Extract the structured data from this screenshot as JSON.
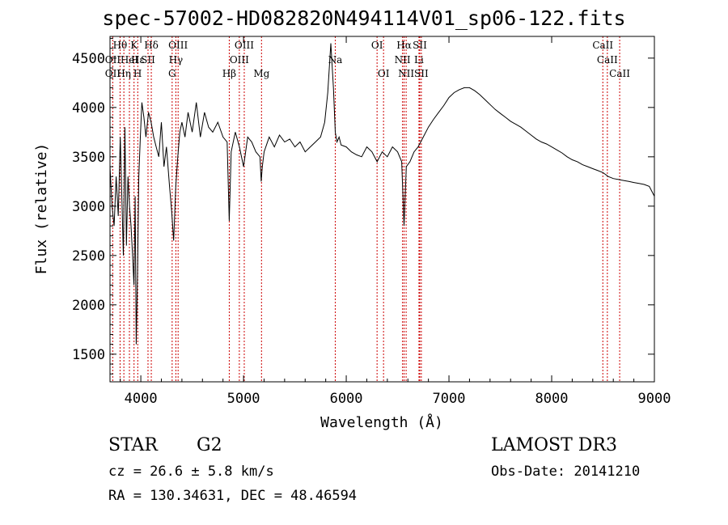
{
  "header": {
    "title": "spec-57002-HD082820N494114V01_sp06-122.fits"
  },
  "footer": {
    "object_type": "STAR",
    "subclass": "G2",
    "survey": "LAMOST DR3",
    "cz": "cz = 26.6 ± 5.8 km/s",
    "obs_date": "Obs-Date: 20141210",
    "radec": "RA = 130.34631, DEC =  48.46594"
  },
  "chart_data": {
    "type": "line",
    "xlabel": "Wavelength (Å)",
    "ylabel": "Flux (relative)",
    "xlim": [
      3700,
      9000
    ],
    "ylim": [
      1220,
      4720
    ],
    "xticks": [
      4000,
      5000,
      6000,
      7000,
      8000,
      9000
    ],
    "yticks": [
      1500,
      2000,
      2500,
      3000,
      3500,
      4000,
      4500
    ],
    "series": [
      {
        "color": "#000000",
        "x": [
          3700,
          3720,
          3740,
          3760,
          3780,
          3800,
          3815,
          3830,
          3845,
          3860,
          3875,
          3890,
          3905,
          3920,
          3933,
          3945,
          3955,
          3968,
          3980,
          3995,
          4010,
          4030,
          4050,
          4075,
          4100,
          4125,
          4150,
          4175,
          4200,
          4225,
          4250,
          4280,
          4300,
          4320,
          4340,
          4360,
          4380,
          4400,
          4430,
          4460,
          4500,
          4540,
          4580,
          4620,
          4660,
          4700,
          4750,
          4800,
          4840,
          4861,
          4880,
          4920,
          4960,
          5000,
          5040,
          5080,
          5120,
          5160,
          5172,
          5183,
          5200,
          5250,
          5300,
          5350,
          5400,
          5450,
          5500,
          5550,
          5600,
          5650,
          5700,
          5750,
          5790,
          5820,
          5850,
          5875,
          5893,
          5910,
          5930,
          5950,
          6000,
          6050,
          6100,
          6150,
          6200,
          6250,
          6300,
          6350,
          6400,
          6450,
          6500,
          6540,
          6563,
          6585,
          6620,
          6660,
          6700,
          6750,
          6800,
          6850,
          6900,
          6950,
          7000,
          7050,
          7100,
          7150,
          7200,
          7250,
          7300,
          7350,
          7400,
          7450,
          7500,
          7550,
          7600,
          7650,
          7700,
          7750,
          7800,
          7850,
          7900,
          7950,
          8000,
          8050,
          8100,
          8150,
          8200,
          8250,
          8300,
          8350,
          8400,
          8450,
          8500,
          8550,
          8600,
          8650,
          8700,
          8750,
          8800,
          8850,
          8900,
          8950,
          9000
        ],
        "y": [
          3400,
          3000,
          2800,
          3300,
          2900,
          3700,
          3100,
          2500,
          3800,
          2600,
          3300,
          3000,
          2800,
          2500,
          2200,
          3100,
          1600,
          2300,
          3300,
          3700,
          4050,
          3900,
          3700,
          3950,
          3850,
          3700,
          3600,
          3500,
          3850,
          3400,
          3600,
          3200,
          2950,
          2650,
          3200,
          3500,
          3750,
          3850,
          3700,
          3950,
          3750,
          4050,
          3700,
          3950,
          3800,
          3750,
          3850,
          3700,
          3650,
          2850,
          3550,
          3750,
          3600,
          3400,
          3700,
          3650,
          3550,
          3500,
          3250,
          3400,
          3550,
          3700,
          3600,
          3720,
          3650,
          3680,
          3600,
          3650,
          3550,
          3600,
          3650,
          3700,
          3850,
          4150,
          4650,
          4200,
          3750,
          3650,
          3700,
          3620,
          3600,
          3550,
          3520,
          3500,
          3600,
          3550,
          3450,
          3550,
          3500,
          3600,
          3550,
          3450,
          2800,
          3400,
          3450,
          3550,
          3600,
          3700,
          3800,
          3880,
          3950,
          4020,
          4100,
          4150,
          4180,
          4200,
          4200,
          4170,
          4130,
          4080,
          4030,
          3980,
          3940,
          3900,
          3860,
          3830,
          3800,
          3760,
          3720,
          3680,
          3650,
          3630,
          3600,
          3570,
          3540,
          3500,
          3470,
          3450,
          3420,
          3400,
          3380,
          3360,
          3340,
          3300,
          3280,
          3270,
          3260,
          3250,
          3240,
          3230,
          3220,
          3200,
          3100
        ]
      }
    ],
    "line_markers": [
      {
        "label": "Hθ",
        "wavelength": 3798,
        "row": 0
      },
      {
        "label": "OII",
        "wavelength": 3727,
        "row": 1
      },
      {
        "label": "HeI",
        "wavelength": 3889,
        "row": 1
      },
      {
        "label": "K",
        "wavelength": 3934,
        "row": 0
      },
      {
        "label": "Hε",
        "wavelength": 3970,
        "row": 1
      },
      {
        "label": "SII",
        "wavelength": 4070,
        "row": 1
      },
      {
        "label": "Hδ",
        "wavelength": 4102,
        "row": 0
      },
      {
        "label": "OII",
        "wavelength": 3727,
        "row": 2
      },
      {
        "label": "Hη",
        "wavelength": 3835,
        "row": 2
      },
      {
        "label": "H",
        "wavelength": 3969,
        "row": 2
      },
      {
        "label": "OIII",
        "wavelength": 4363,
        "row": 0
      },
      {
        "label": "Hγ",
        "wavelength": 4341,
        "row": 1
      },
      {
        "label": "G",
        "wavelength": 4305,
        "row": 2
      },
      {
        "label": "OIII",
        "wavelength": 5007,
        "row": 0
      },
      {
        "label": "OIII",
        "wavelength": 4959,
        "row": 1
      },
      {
        "label": "Hβ",
        "wavelength": 4861,
        "row": 2
      },
      {
        "label": "Mg",
        "wavelength": 5175,
        "row": 2
      },
      {
        "label": "Na",
        "wavelength": 5893,
        "row": 1
      },
      {
        "label": "OI",
        "wavelength": 6300,
        "row": 0
      },
      {
        "label": "OI",
        "wavelength": 6363,
        "row": 2
      },
      {
        "label": "Hα",
        "wavelength": 6563,
        "row": 0
      },
      {
        "label": "SII",
        "wavelength": 6716,
        "row": 0
      },
      {
        "label": "NII",
        "wavelength": 6548,
        "row": 1
      },
      {
        "label": "Li",
        "wavelength": 6708,
        "row": 1
      },
      {
        "label": "NII",
        "wavelength": 6583,
        "row": 2
      },
      {
        "label": "SII",
        "wavelength": 6731,
        "row": 2
      },
      {
        "label": "CaII",
        "wavelength": 8498,
        "row": 0
      },
      {
        "label": "CaII",
        "wavelength": 8542,
        "row": 1
      },
      {
        "label": "CaII",
        "wavelength": 8662,
        "row": 2
      }
    ],
    "marker_color": "#cc0000",
    "grid": false,
    "legend": "none"
  }
}
